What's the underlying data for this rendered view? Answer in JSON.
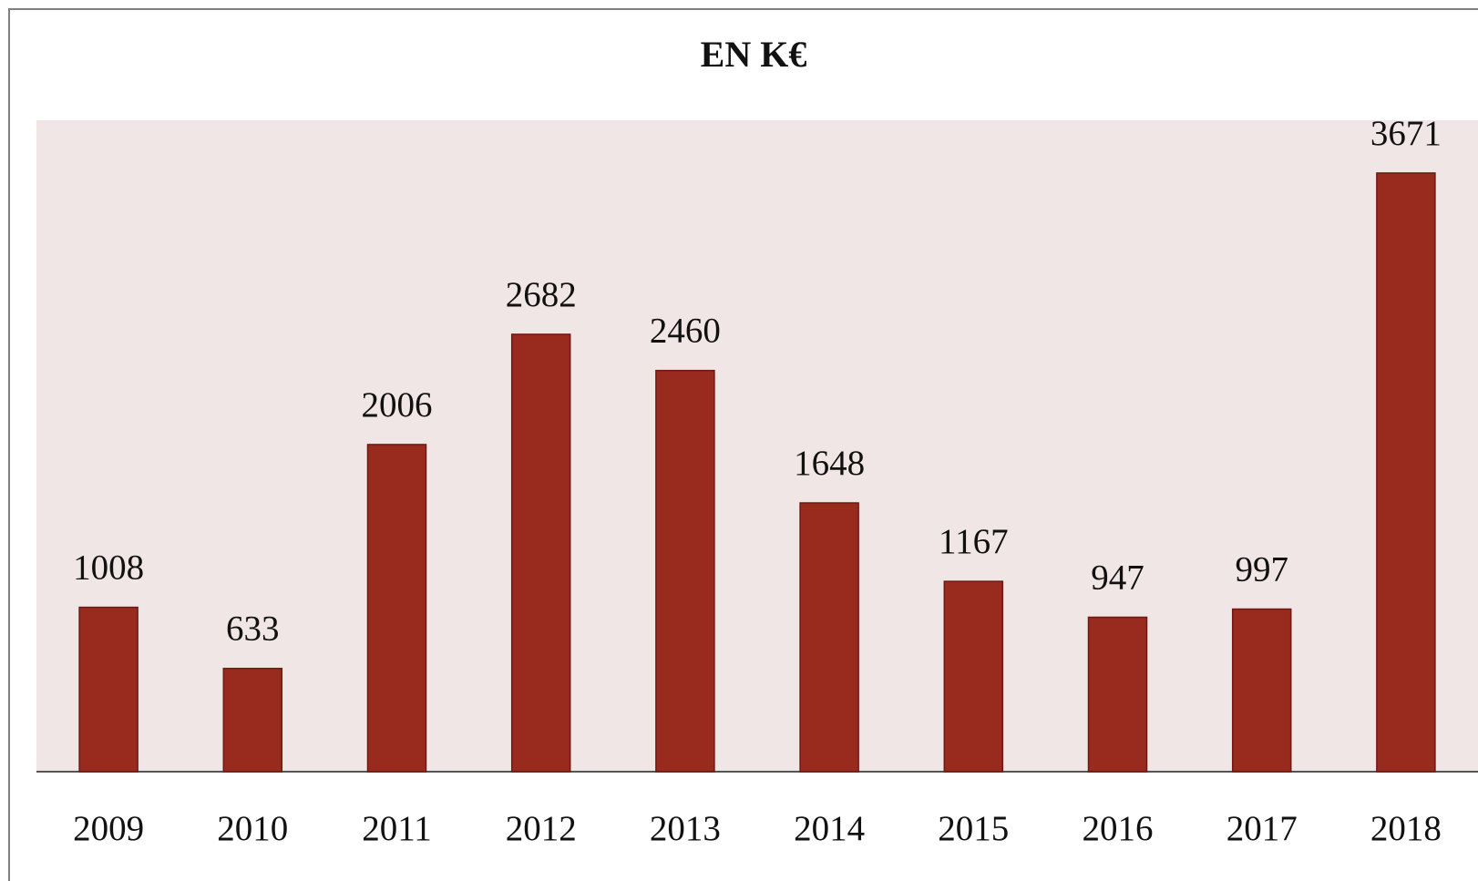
{
  "chart_data": {
    "type": "bar",
    "title": "EN K€",
    "categories": [
      "2009",
      "2010",
      "2011",
      "2012",
      "2013",
      "2014",
      "2015",
      "2016",
      "2017",
      "2018"
    ],
    "values": [
      1008,
      633,
      2006,
      2682,
      2460,
      1648,
      1167,
      947,
      997,
      3671
    ],
    "color": "#982a1e"
  }
}
